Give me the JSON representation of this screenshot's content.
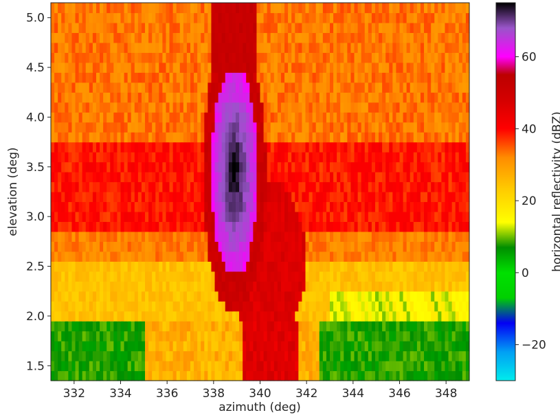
{
  "chart_data": {
    "type": "heatmap",
    "title": "",
    "xlabel": "azimuth (deg)",
    "ylabel": "elevation (deg)",
    "xlim": [
      331.0,
      349.0
    ],
    "ylim": [
      1.35,
      5.15
    ],
    "xticks": [
      "332",
      "334",
      "336",
      "338",
      "340",
      "342",
      "344",
      "346",
      "348"
    ],
    "yticks": [
      "1.5",
      "2.0",
      "2.5",
      "3.0",
      "3.5",
      "4.0",
      "4.5",
      "5.0"
    ],
    "colorbar": {
      "label": "horizontal reflectivity (dBZ)",
      "range": [
        -30,
        75
      ],
      "ticks": [
        "−20",
        "0",
        "20",
        "40",
        "60"
      ],
      "colormap_stops": [
        {
          "v": -30,
          "c": "#00ecec"
        },
        {
          "v": -22,
          "c": "#019ff4"
        },
        {
          "v": -14,
          "c": "#0300f4"
        },
        {
          "v": -7,
          "c": "#00d000"
        },
        {
          "v": 0,
          "c": "#00e000"
        },
        {
          "v": 7,
          "c": "#008e00"
        },
        {
          "v": 14,
          "c": "#ffff00"
        },
        {
          "v": 23,
          "c": "#ffcc00"
        },
        {
          "v": 32,
          "c": "#ff8c00"
        },
        {
          "v": 40,
          "c": "#ff0000"
        },
        {
          "v": 48,
          "c": "#d40000"
        },
        {
          "v": 55,
          "c": "#bc0000"
        },
        {
          "v": 60,
          "c": "#ff00ff"
        },
        {
          "v": 68,
          "c": "#9955c9"
        },
        {
          "v": 75,
          "c": "#000000"
        }
      ]
    }
  }
}
